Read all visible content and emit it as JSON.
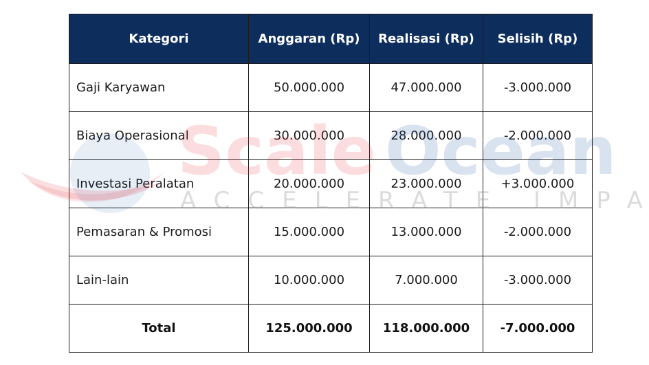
{
  "table": {
    "headers": [
      "Kategori",
      "Anggaran (Rp)",
      "Realisasi (Rp)",
      "Selisih (Rp)"
    ],
    "rows": [
      {
        "kategori": "Gaji Karyawan",
        "anggaran": "50.000.000",
        "realisasi": "47.000.000",
        "selisih": "-3.000.000"
      },
      {
        "kategori": "Biaya Operasional",
        "anggaran": "30.000.000",
        "realisasi": "28.000.000",
        "selisih": "-2.000.000"
      },
      {
        "kategori": "Investasi Peralatan",
        "anggaran": "20.000.000",
        "realisasi": "23.000.000",
        "selisih": "+3.000.000"
      },
      {
        "kategori": "Pemasaran & Promosi",
        "anggaran": "15.000.000",
        "realisasi": "13.000.000",
        "selisih": "-2.000.000"
      },
      {
        "kategori": "Lain-lain",
        "anggaran": "10.000.000",
        "realisasi": "7.000.000",
        "selisih": "-3.000.000"
      }
    ],
    "total": {
      "kategori": "Total",
      "anggaran": "125.000.000",
      "realisasi": "118.000.000",
      "selisih": "-7.000.000"
    }
  },
  "watermark": {
    "brand_part1": "Scale",
    "brand_part2": "Ocean",
    "tagline": "ACCELERATE IMPACT",
    "colors": {
      "scale": "#e8343c",
      "ocean": "#1c5aa8",
      "header": "#0d2d5c"
    }
  }
}
